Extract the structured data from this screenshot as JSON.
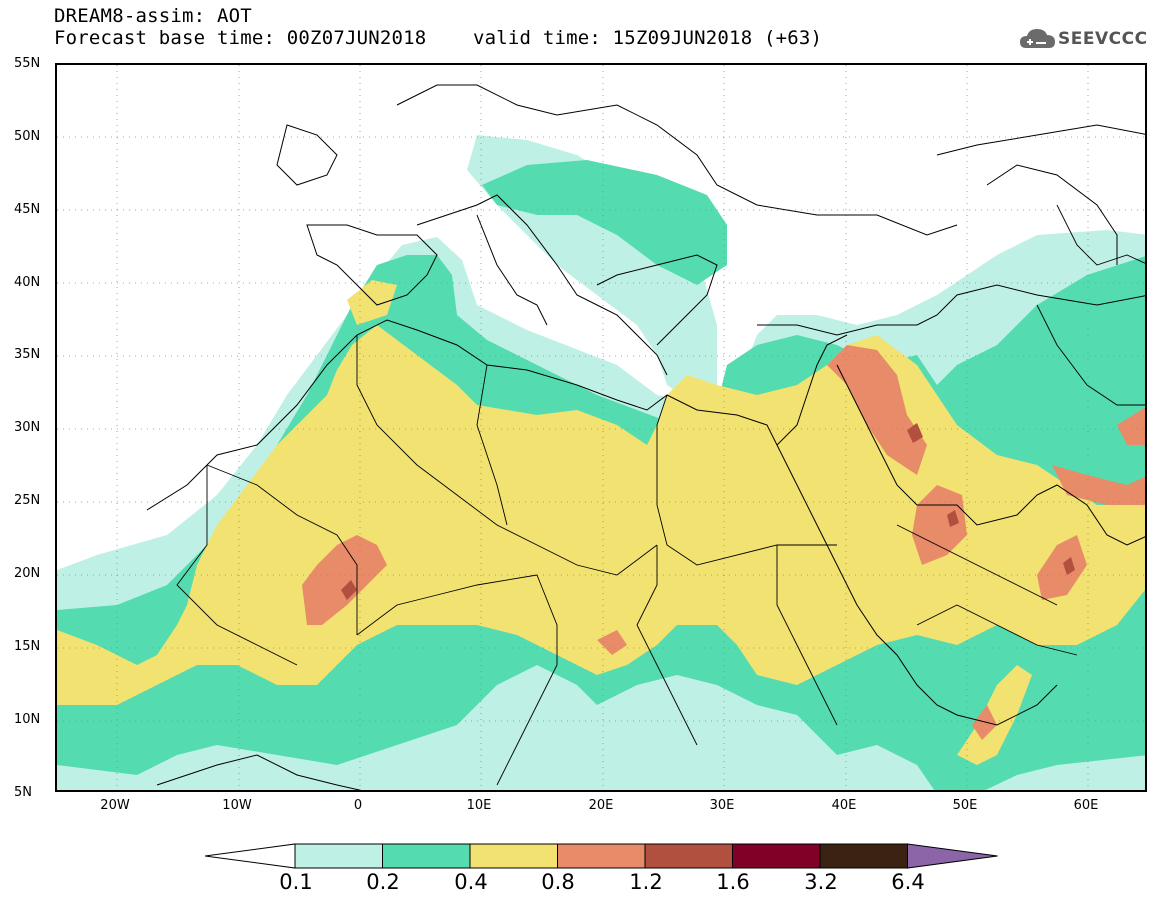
{
  "header": {
    "title": "DREAM8-assim: AOT",
    "subtitle": "Forecast base time: 00Z07JUN2018    valid time: 15Z09JUN2018 (+63)",
    "logo_text": "SEEVCCC",
    "logo_icon": "cloud-icon"
  },
  "map": {
    "variable": "Aerosol Optical Thickness",
    "lon_range": [
      -25,
      65
    ],
    "lat_range": [
      5,
      55
    ],
    "lat_labels": [
      "55N",
      "50N",
      "45N",
      "40N",
      "35N",
      "30N",
      "25N",
      "20N",
      "15N",
      "10N",
      "5N"
    ],
    "lon_labels": [
      "20W",
      "10W",
      "0",
      "10E",
      "20E",
      "30E",
      "40E",
      "50E",
      "60E"
    ],
    "grid": "dotted"
  },
  "colorbar": {
    "levels": [
      "0.1",
      "0.2",
      "0.4",
      "0.8",
      "1.2",
      "1.6",
      "3.2",
      "6.4"
    ],
    "colors": [
      "#ffffff",
      "#bff0e6",
      "#55dbb0",
      "#f2e271",
      "#e88b68",
      "#b25040",
      "#800028",
      "#3b2314",
      "#8b65a8"
    ]
  }
}
